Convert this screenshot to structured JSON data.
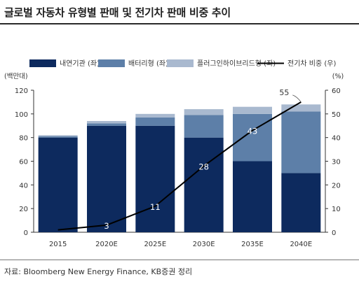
{
  "title": "글로벌 자동차 유형별 판매 및 전기차 판매 비중 추이",
  "source": "자료: Bloomberg New Energy Finance, KB증권 정리",
  "chart_data": {
    "type": "bar",
    "stacked": true,
    "categories": [
      "2015",
      "2020E",
      "2025E",
      "2030E",
      "2035E",
      "2040E"
    ],
    "series": [
      {
        "name": "내연기관 (좌)",
        "axis": "left",
        "color": "#0d2a5e",
        "values": [
          80,
          90,
          90,
          80,
          60,
          50
        ]
      },
      {
        "name": "배터리형 (좌)",
        "axis": "left",
        "color": "#5d7fa8",
        "values": [
          1,
          2,
          7,
          19,
          40,
          52
        ]
      },
      {
        "name": "플러그인하이브리드형 (좌)",
        "axis": "left",
        "color": "#a9b9cf",
        "values": [
          1,
          2,
          3,
          5,
          6,
          6
        ]
      }
    ],
    "line_series": {
      "name": "전기차 비중 (우)",
      "axis": "right",
      "color": "#000000",
      "values": [
        1,
        3,
        11,
        28,
        43,
        55
      ],
      "labels": [
        "",
        "3",
        "11",
        "28",
        "43",
        "55"
      ]
    },
    "y_left": {
      "label": "(백만대)",
      "min": 0,
      "max": 120,
      "ticks": [
        0,
        20,
        40,
        60,
        80,
        100,
        120
      ]
    },
    "y_right": {
      "label": "(%)",
      "min": 0,
      "max": 60,
      "ticks": [
        0,
        10,
        20,
        30,
        40,
        50,
        60
      ]
    },
    "grid": false,
    "legend_position": "top"
  }
}
